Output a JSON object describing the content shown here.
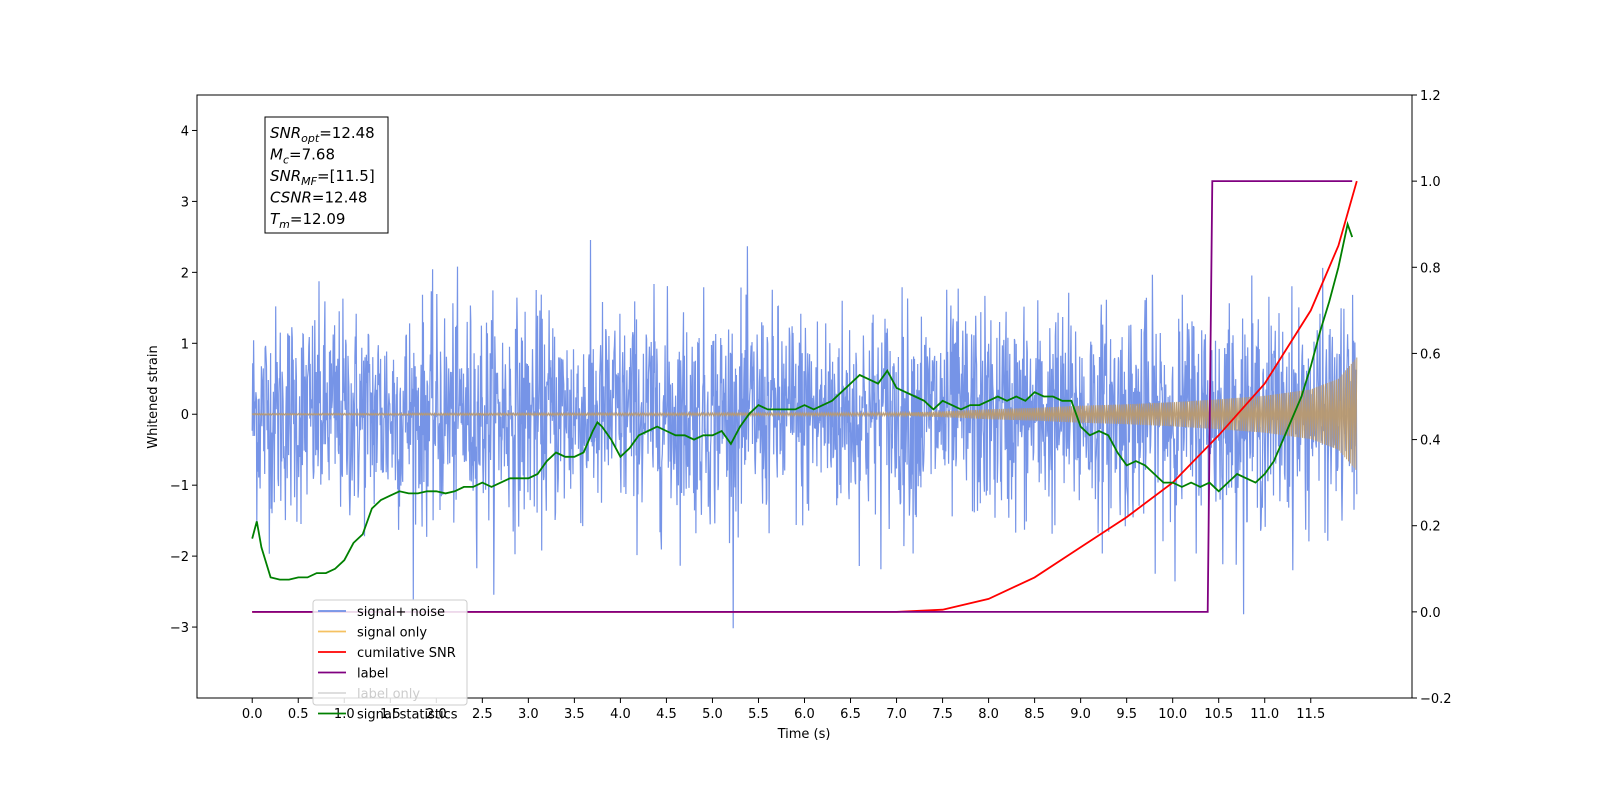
{
  "chart_data": {
    "type": "line",
    "title": "",
    "xlabel": "Time (s)",
    "ylabel": "Whitened strain",
    "xlim": [
      -0.6,
      12.6
    ],
    "ylim": [
      -4.0,
      4.5
    ],
    "ylim_right": [
      -0.2,
      1.2
    ],
    "grid": false,
    "legend_position": "bottom-left",
    "x_ticks": [
      0.0,
      0.5,
      1.0,
      1.5,
      2.0,
      2.5,
      3.0,
      3.5,
      4.0,
      4.5,
      5.0,
      5.5,
      6.0,
      6.5,
      7.0,
      7.5,
      8.0,
      8.5,
      9.0,
      9.5,
      10.0,
      10.5,
      11.0,
      11.5
    ],
    "x_tick_labels": [
      "0.0",
      "0.5",
      "1.0",
      "1.5",
      "2.0",
      "2.5",
      "3.0",
      "3.5",
      "4.0",
      "4.5",
      "5.0",
      "5.5",
      "6.0",
      "6.5",
      "7.0",
      "7.5",
      "8.0",
      "8.5",
      "9.0",
      "9.5",
      "10.0",
      "10.5",
      "11.0",
      "11.5"
    ],
    "y_ticks": [
      -3,
      -2,
      -1,
      0,
      1,
      2,
      3,
      4
    ],
    "y_tick_labels": [
      "−3",
      "−2",
      "−1",
      "0",
      "1",
      "2",
      "3",
      "4"
    ],
    "y_right_ticks": [
      -0.2,
      0.0,
      0.2,
      0.4,
      0.6,
      0.8,
      1.0,
      1.2
    ],
    "y_right_tick_labels": [
      "−0.2",
      "0.0",
      "0.2",
      "0.4",
      "0.6",
      "0.8",
      "1.0",
      "1.2"
    ],
    "annotation": {
      "lines": [
        {
          "sym": "SNR",
          "sub": "opt",
          "value": "=12.48"
        },
        {
          "sym": "M",
          "sub": "c",
          "value": "=7.68"
        },
        {
          "sym": "SNR",
          "sub": "MF",
          "value": "=[11.5]"
        },
        {
          "sym": "CSNR",
          "sub": "",
          "value": "=12.48"
        },
        {
          "sym": "T",
          "sub": "m",
          "value": "=12.09"
        }
      ]
    },
    "series": [
      {
        "name": "signal+ noise",
        "color": "#6f8ee6",
        "axis": "left",
        "noise_amplitude": 1.0,
        "x_range": [
          0.0,
          12.0
        ]
      },
      {
        "name": "signal only",
        "color": "#f5c161",
        "axis": "left",
        "envelope_x": [
          0.0,
          7.0,
          7.5,
          8.0,
          8.5,
          9.0,
          9.5,
          10.0,
          10.5,
          11.0,
          11.5,
          11.8,
          12.0
        ],
        "envelope_y": [
          0.01,
          0.02,
          0.04,
          0.07,
          0.09,
          0.12,
          0.14,
          0.17,
          0.21,
          0.26,
          0.35,
          0.5,
          0.8
        ]
      },
      {
        "name": "cumilative SNR",
        "color": "#ff0000",
        "axis": "right",
        "x": [
          0.0,
          7.0,
          7.5,
          8.0,
          8.5,
          9.0,
          9.5,
          10.0,
          10.5,
          11.0,
          11.5,
          11.8,
          12.0
        ],
        "y": [
          0.0,
          0.0,
          0.005,
          0.03,
          0.08,
          0.15,
          0.22,
          0.3,
          0.41,
          0.53,
          0.7,
          0.85,
          1.0
        ]
      },
      {
        "name": "label",
        "color": "#800080",
        "axis": "right",
        "x": [
          0.0,
          10.38,
          10.43,
          11.95
        ],
        "y": [
          0.0,
          0.0,
          1.0,
          1.0
        ]
      },
      {
        "name": "label only",
        "color": "#d9d9d9",
        "axis": "right",
        "x": [],
        "y": []
      },
      {
        "name": "signal statistics",
        "color": "#008000",
        "axis": "right",
        "x": [
          0.0,
          0.05,
          0.1,
          0.2,
          0.3,
          0.4,
          0.5,
          0.6,
          0.7,
          0.8,
          0.9,
          1.0,
          1.05,
          1.1,
          1.2,
          1.3,
          1.4,
          1.5,
          1.6,
          1.7,
          1.8,
          1.9,
          2.0,
          2.1,
          2.2,
          2.3,
          2.4,
          2.5,
          2.6,
          2.7,
          2.8,
          2.9,
          3.0,
          3.1,
          3.2,
          3.3,
          3.4,
          3.5,
          3.6,
          3.7,
          3.75,
          3.8,
          3.9,
          4.0,
          4.1,
          4.2,
          4.3,
          4.4,
          4.5,
          4.6,
          4.7,
          4.8,
          4.9,
          5.0,
          5.1,
          5.2,
          5.3,
          5.4,
          5.5,
          5.6,
          5.7,
          5.8,
          5.9,
          6.0,
          6.1,
          6.2,
          6.3,
          6.4,
          6.5,
          6.6,
          6.7,
          6.8,
          6.9,
          7.0,
          7.1,
          7.2,
          7.3,
          7.4,
          7.5,
          7.6,
          7.7,
          7.8,
          7.9,
          8.0,
          8.1,
          8.2,
          8.3,
          8.4,
          8.5,
          8.6,
          8.7,
          8.8,
          8.9,
          9.0,
          9.1,
          9.2,
          9.3,
          9.4,
          9.5,
          9.6,
          9.7,
          9.8,
          9.9,
          10.0,
          10.1,
          10.2,
          10.3,
          10.4,
          10.5,
          10.6,
          10.7,
          10.8,
          10.9,
          11.0,
          11.1,
          11.2,
          11.3,
          11.4,
          11.5,
          11.6,
          11.7,
          11.8,
          11.9,
          11.95
        ],
        "y": [
          0.17,
          0.21,
          0.15,
          0.08,
          0.075,
          0.075,
          0.08,
          0.08,
          0.09,
          0.09,
          0.1,
          0.12,
          0.14,
          0.16,
          0.18,
          0.24,
          0.26,
          0.27,
          0.28,
          0.275,
          0.275,
          0.28,
          0.28,
          0.275,
          0.28,
          0.29,
          0.29,
          0.3,
          0.29,
          0.3,
          0.31,
          0.31,
          0.31,
          0.32,
          0.35,
          0.37,
          0.36,
          0.36,
          0.37,
          0.42,
          0.44,
          0.43,
          0.4,
          0.36,
          0.38,
          0.41,
          0.42,
          0.43,
          0.42,
          0.41,
          0.41,
          0.4,
          0.41,
          0.41,
          0.42,
          0.39,
          0.43,
          0.46,
          0.48,
          0.47,
          0.47,
          0.47,
          0.47,
          0.48,
          0.47,
          0.48,
          0.49,
          0.51,
          0.53,
          0.55,
          0.54,
          0.53,
          0.56,
          0.52,
          0.51,
          0.5,
          0.49,
          0.47,
          0.49,
          0.48,
          0.47,
          0.48,
          0.48,
          0.49,
          0.5,
          0.49,
          0.5,
          0.49,
          0.51,
          0.5,
          0.5,
          0.49,
          0.49,
          0.43,
          0.41,
          0.42,
          0.41,
          0.37,
          0.34,
          0.35,
          0.34,
          0.32,
          0.3,
          0.3,
          0.29,
          0.3,
          0.29,
          0.3,
          0.28,
          0.3,
          0.32,
          0.31,
          0.3,
          0.32,
          0.35,
          0.4,
          0.45,
          0.5,
          0.57,
          0.65,
          0.72,
          0.8,
          0.9,
          0.87
        ]
      }
    ]
  }
}
